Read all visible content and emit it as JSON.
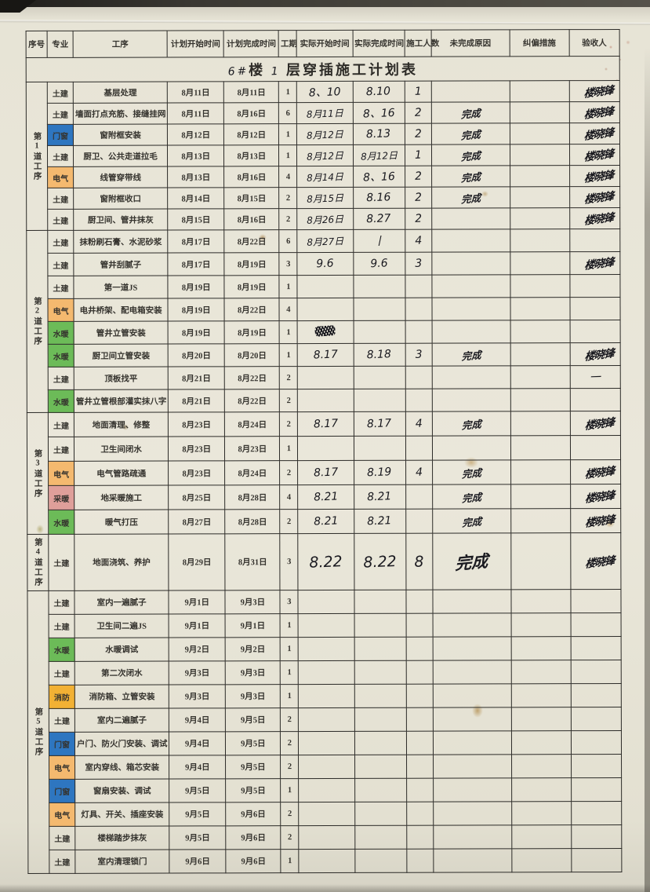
{
  "title": {
    "building_hand": "6#",
    "building_label": "楼",
    "floor_hand": "1",
    "rest": "层穿插施工计划表"
  },
  "columns": [
    "序号",
    "专业",
    "工序",
    "计划开始时间",
    "计划完成时间",
    "工期",
    "实际开始时间",
    "实际完成时间",
    "施工人数",
    "未完成原因",
    "纠偏措施",
    "验收人"
  ],
  "specialty_colors": {
    "土建": "",
    "门窗": "#2e76c0",
    "电气": "#f4b96f",
    "水暖": "#6cbb58",
    "采暖": "#df9f9a",
    "消防": "#f2b134"
  },
  "signature": "楼晓锋",
  "sections": [
    {
      "label": "第1道工序",
      "rows": [
        {
          "spec": "土建",
          "proc": "基层处理",
          "ps": "8月11日",
          "pe": "8月11日",
          "d": "1",
          "as": "8、10",
          "ae": "8.10",
          "w": "1",
          "reason": "",
          "acc": "sig"
        },
        {
          "spec": "土建",
          "proc": "墙面打点充筋、接缝挂网",
          "ps": "8月11日",
          "pe": "8月16日",
          "d": "6",
          "as": "8月11日",
          "ae": "8、16",
          "w": "2",
          "reason": "完成",
          "acc": "sig"
        },
        {
          "spec": "门窗",
          "proc": "窗附框安装",
          "ps": "8月12日",
          "pe": "8月12日",
          "d": "1",
          "as": "8月12日",
          "ae": "8.13",
          "w": "2",
          "reason": "完成",
          "acc": "sig"
        },
        {
          "spec": "土建",
          "proc": "厨卫、公共走道拉毛",
          "ps": "8月13日",
          "pe": "8月13日",
          "d": "1",
          "as": "8月12日",
          "ae": "8月12日",
          "w": "1",
          "reason": "完成",
          "acc": "sig"
        },
        {
          "spec": "电气",
          "proc": "线管穿带线",
          "ps": "8月13日",
          "pe": "8月16日",
          "d": "4",
          "as": "8月14日",
          "ae": "8、16",
          "w": "2",
          "reason": "完成",
          "acc": "sig"
        },
        {
          "spec": "土建",
          "proc": "窗附框收口",
          "ps": "8月14日",
          "pe": "8月15日",
          "d": "2",
          "as": "8月15日",
          "ae": "8.16",
          "w": "2",
          "reason": "完成",
          "acc": "sig"
        },
        {
          "spec": "土建",
          "proc": "厨卫间、管井抹灰",
          "ps": "8月15日",
          "pe": "8月16日",
          "d": "2",
          "as": "8月26日",
          "ae": "8.27",
          "w": "2",
          "reason": "",
          "acc": "sig"
        }
      ]
    },
    {
      "label": "第2道工序",
      "rows": [
        {
          "spec": "土建",
          "proc": "抹粉刷石膏、水泥砂浆",
          "ps": "8月17日",
          "pe": "8月22日",
          "d": "6",
          "as": "8月27日",
          "ae": "丨",
          "w": "4",
          "reason": "",
          "acc": ""
        },
        {
          "spec": "土建",
          "proc": "管井刮腻子",
          "ps": "8月17日",
          "pe": "8月19日",
          "d": "3",
          "as": "9.6",
          "ae": "9.6",
          "w": "3",
          "reason": "",
          "acc": "sig"
        },
        {
          "spec": "土建",
          "proc": "第一道JS",
          "ps": "8月19日",
          "pe": "8月19日",
          "d": "1",
          "as": "",
          "ae": "",
          "w": "",
          "reason": "",
          "acc": ""
        },
        {
          "spec": "电气",
          "proc": "电井桥架、配电箱安装",
          "ps": "8月19日",
          "pe": "8月22日",
          "d": "4",
          "as": "",
          "ae": "",
          "w": "",
          "reason": "",
          "acc": ""
        },
        {
          "spec": "水暖",
          "proc": "管井立管安装",
          "ps": "8月19日",
          "pe": "8月19日",
          "d": "1",
          "as": "",
          "ae": "",
          "w": "",
          "reason": "",
          "acc": "",
          "scribble": true
        },
        {
          "spec": "水暖",
          "proc": "厨卫间立管安装",
          "ps": "8月20日",
          "pe": "8月20日",
          "d": "1",
          "as": "8.17",
          "ae": "8.18",
          "w": "3",
          "reason": "完成",
          "acc": "sig"
        },
        {
          "spec": "土建",
          "proc": "顶板找平",
          "ps": "8月21日",
          "pe": "8月22日",
          "d": "2",
          "as": "",
          "ae": "",
          "w": "",
          "reason": "",
          "acc": "一"
        },
        {
          "spec": "水暖",
          "proc": "管井立管根部灌实抹八字",
          "ps": "8月21日",
          "pe": "8月22日",
          "d": "2",
          "as": "",
          "ae": "",
          "w": "",
          "reason": "",
          "acc": ""
        }
      ]
    },
    {
      "label": "第3道工序",
      "rows": [
        {
          "spec": "土建",
          "proc": "地面清理、修整",
          "ps": "8月23日",
          "pe": "8月24日",
          "d": "2",
          "as": "8.17",
          "ae": "8.17",
          "w": "4",
          "reason": "完成",
          "acc": "sig"
        },
        {
          "spec": "土建",
          "proc": "卫生间闭水",
          "ps": "8月23日",
          "pe": "8月23日",
          "d": "1",
          "as": "",
          "ae": "",
          "w": "",
          "reason": "",
          "acc": ""
        },
        {
          "spec": "电气",
          "proc": "电气管路疏通",
          "ps": "8月23日",
          "pe": "8月24日",
          "d": "2",
          "as": "8.17",
          "ae": "8.19",
          "w": "4",
          "reason": "完成",
          "acc": "sig"
        },
        {
          "spec": "采暖",
          "proc": "地采暖施工",
          "ps": "8月25日",
          "pe": "8月28日",
          "d": "4",
          "as": "8.21",
          "ae": "8.21",
          "w": "",
          "reason": "完成",
          "acc": "sig"
        },
        {
          "spec": "水暖",
          "proc": "暖气打压",
          "ps": "8月27日",
          "pe": "8月28日",
          "d": "2",
          "as": "8.21",
          "ae": "8.21",
          "w": "",
          "reason": "完成",
          "acc": "sig"
        }
      ]
    },
    {
      "label": "第4道工序",
      "rows": [
        {
          "spec": "土建",
          "proc": "地面浇筑、养护",
          "ps": "8月29日",
          "pe": "8月31日",
          "d": "3",
          "as": "8.22",
          "ae": "8.22",
          "w": "8",
          "reason": "完成",
          "acc": "sig",
          "big": true
        }
      ]
    },
    {
      "label": "第5道工序",
      "rows": [
        {
          "spec": "土建",
          "proc": "室内一遍腻子",
          "ps": "9月1日",
          "pe": "9月3日",
          "d": "3",
          "as": "",
          "ae": "",
          "w": "",
          "reason": "",
          "acc": ""
        },
        {
          "spec": "土建",
          "proc": "卫生间二遍JS",
          "ps": "9月1日",
          "pe": "9月1日",
          "d": "1",
          "as": "",
          "ae": "",
          "w": "",
          "reason": "",
          "acc": ""
        },
        {
          "spec": "水暖",
          "proc": "水暖调试",
          "ps": "9月2日",
          "pe": "9月2日",
          "d": "1",
          "as": "",
          "ae": "",
          "w": "",
          "reason": "",
          "acc": ""
        },
        {
          "spec": "土建",
          "proc": "第二次闭水",
          "ps": "9月3日",
          "pe": "9月3日",
          "d": "1",
          "as": "",
          "ae": "",
          "w": "",
          "reason": "",
          "acc": ""
        },
        {
          "spec": "消防",
          "proc": "消防箱、立管安装",
          "ps": "9月3日",
          "pe": "9月3日",
          "d": "1",
          "as": "",
          "ae": "",
          "w": "",
          "reason": "",
          "acc": ""
        },
        {
          "spec": "土建",
          "proc": "室内二遍腻子",
          "ps": "9月4日",
          "pe": "9月5日",
          "d": "2",
          "as": "",
          "ae": "",
          "w": "",
          "reason": "",
          "acc": ""
        },
        {
          "spec": "门窗",
          "proc": "户门、防火门安装、调试",
          "ps": "9月4日",
          "pe": "9月5日",
          "d": "2",
          "as": "",
          "ae": "",
          "w": "",
          "reason": "",
          "acc": ""
        },
        {
          "spec": "电气",
          "proc": "室内穿线、箱芯安装",
          "ps": "9月4日",
          "pe": "9月5日",
          "d": "2",
          "as": "",
          "ae": "",
          "w": "",
          "reason": "",
          "acc": ""
        },
        {
          "spec": "门窗",
          "proc": "窗扇安装、调试",
          "ps": "9月5日",
          "pe": "9月5日",
          "d": "1",
          "as": "",
          "ae": "",
          "w": "",
          "reason": "",
          "acc": ""
        },
        {
          "spec": "电气",
          "proc": "灯具、开关、插座安装",
          "ps": "9月5日",
          "pe": "9月6日",
          "d": "2",
          "as": "",
          "ae": "",
          "w": "",
          "reason": "",
          "acc": ""
        },
        {
          "spec": "土建",
          "proc": "楼梯踏步抹灰",
          "ps": "9月5日",
          "pe": "9月6日",
          "d": "2",
          "as": "",
          "ae": "",
          "w": "",
          "reason": "",
          "acc": ""
        },
        {
          "spec": "土建",
          "proc": "室内清理锁门",
          "ps": "9月6日",
          "pe": "9月6日",
          "d": "1",
          "as": "",
          "ae": "",
          "w": "",
          "reason": "",
          "acc": ""
        }
      ]
    }
  ]
}
